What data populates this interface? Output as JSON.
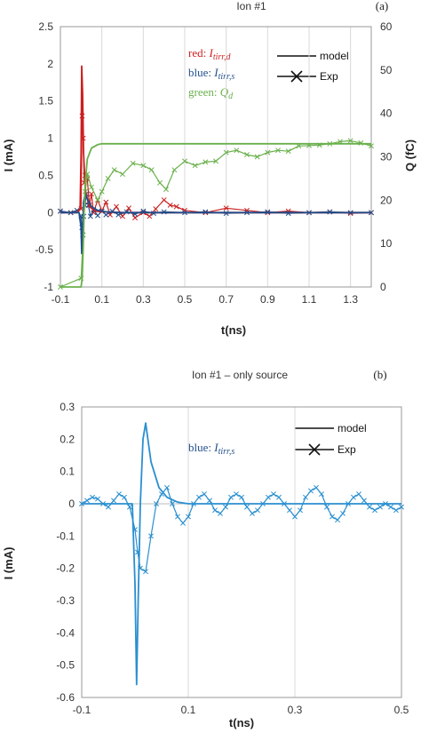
{
  "colors": {
    "red": "#cc1f1f",
    "blue": "#1f4e8c",
    "green": "#6ab04c",
    "panel_b_line": "#2a8fd0",
    "grid": "#d9d9d9"
  },
  "chart_data": [
    {
      "type": "line",
      "panel_label": "(a)",
      "title": "Ion #1",
      "xlabel": "t(ns)",
      "ylabel": "I (mA)",
      "y2label": "Q (fC)",
      "xlim": [
        -0.1,
        1.4
      ],
      "ylim": [
        -1,
        2.5
      ],
      "y2lim": [
        0,
        60
      ],
      "xticks": [
        "-0.1",
        "0.1",
        "0.3",
        "0.5",
        "0.7",
        "0.9",
        "1.1",
        "1.3"
      ],
      "yticks": [
        "2.5",
        "2",
        "1.5",
        "1",
        "0.5",
        "0",
        "-0.5",
        "-1"
      ],
      "y2ticks": [
        "60",
        "50",
        "40",
        "30",
        "20",
        "10",
        "0"
      ],
      "grid": "vertical",
      "legend": {
        "placement": "top-right",
        "entries": [
          "model",
          "Exp"
        ]
      },
      "annotations": [
        {
          "prefix": "red: ",
          "symbol": "I",
          "sub": "tirr,d",
          "color": "red"
        },
        {
          "prefix": "blue: ",
          "symbol": "I",
          "sub": "tirr,s",
          "color": "blue"
        },
        {
          "prefix": "green: ",
          "symbol": "Q",
          "sub": "d",
          "color": "green"
        }
      ],
      "series": [
        {
          "name": "red: Itirr,d",
          "axis": "y",
          "style": "model",
          "x": [
            -0.1,
            -0.02,
            -0.005,
            0.0,
            0.003,
            0.007,
            0.012,
            0.02,
            0.04,
            0.07,
            0.1,
            0.2,
            0.3,
            0.5,
            0.8,
            1.1,
            1.4
          ],
          "y": [
            0,
            0,
            0.05,
            0.8,
            1.97,
            1.6,
            0.8,
            0.3,
            0.08,
            0.02,
            0.01,
            0,
            0,
            0,
            0,
            0,
            0
          ]
        },
        {
          "name": "blue: Itirr,s",
          "axis": "y",
          "style": "model",
          "x": [
            -0.1,
            -0.01,
            0.0,
            0.003,
            0.007,
            0.012,
            0.02,
            0.03,
            0.05,
            0.08,
            0.12,
            0.2,
            0.4,
            0.8,
            1.4
          ],
          "y": [
            0,
            0,
            -0.2,
            -0.55,
            -0.3,
            0.15,
            0.25,
            0.18,
            0.08,
            0.03,
            0.01,
            0,
            0,
            0,
            0
          ]
        },
        {
          "name": "green: Qd",
          "axis": "y2",
          "style": "model",
          "x": [
            -0.1,
            0.0,
            0.005,
            0.01,
            0.015,
            0.02,
            0.03,
            0.05,
            0.08,
            0.1,
            0.2,
            0.5,
            1.0,
            1.4
          ],
          "y": [
            0,
            0,
            2,
            9,
            18,
            24,
            29.5,
            32,
            32.8,
            33,
            33,
            33,
            33,
            33
          ]
        },
        {
          "name": "red: Itirr,d",
          "axis": "y",
          "style": "exp",
          "x": [
            -0.1,
            -0.05,
            0.0,
            0.005,
            0.01,
            0.015,
            0.02,
            0.03,
            0.04,
            0.05,
            0.06,
            0.08,
            0.1,
            0.12,
            0.14,
            0.17,
            0.2,
            0.23,
            0.26,
            0.3,
            0.33,
            0.36,
            0.4,
            0.43,
            0.46,
            0.5,
            0.6,
            0.7,
            0.8,
            0.9,
            1.0,
            1.1,
            1.2,
            1.3,
            1.4
          ],
          "y": [
            0.02,
            0.0,
            0.05,
            1.3,
            1.0,
            0.4,
            0.5,
            0.45,
            0.1,
            0.25,
            0.0,
            0.17,
            0.02,
            0.14,
            -0.03,
            0.08,
            -0.05,
            0.06,
            -0.07,
            0.0,
            -0.05,
            0.05,
            0.17,
            0.1,
            0.08,
            0.03,
            0.0,
            0.06,
            0.03,
            0.0,
            0.02,
            0.0,
            0.01,
            -0.01,
            0.0
          ]
        },
        {
          "name": "blue: Itirr,s",
          "axis": "y",
          "style": "exp",
          "x": [
            -0.1,
            -0.05,
            -0.02,
            0.0,
            0.004,
            0.008,
            0.012,
            0.018,
            0.025,
            0.035,
            0.045,
            0.06,
            0.08,
            0.1,
            0.12,
            0.15,
            0.18,
            0.22,
            0.26,
            0.3,
            0.35,
            0.4,
            0.5,
            0.6,
            0.7,
            0.8,
            0.9,
            1.0,
            1.1,
            1.2,
            1.3,
            1.4
          ],
          "y": [
            0.02,
            0.0,
            0.03,
            -0.05,
            -0.2,
            -0.3,
            -0.05,
            0.1,
            0.25,
            0.1,
            -0.05,
            0.04,
            -0.04,
            0.02,
            -0.03,
            0.02,
            -0.03,
            0.01,
            -0.02,
            0.02,
            -0.01,
            0.01,
            0.0,
            0.01,
            -0.01,
            0.0,
            0.01,
            -0.01,
            0.0,
            0.01,
            0.0,
            0.0
          ]
        },
        {
          "name": "green: Qd",
          "axis": "y2",
          "style": "exp",
          "x": [
            -0.1,
            0.0,
            0.01,
            0.02,
            0.03,
            0.05,
            0.08,
            0.1,
            0.13,
            0.16,
            0.2,
            0.25,
            0.3,
            0.34,
            0.38,
            0.41,
            0.45,
            0.5,
            0.55,
            0.6,
            0.65,
            0.7,
            0.75,
            0.8,
            0.85,
            0.9,
            0.95,
            1.0,
            1.05,
            1.1,
            1.15,
            1.2,
            1.25,
            1.3,
            1.35,
            1.4
          ],
          "y": [
            0,
            2,
            12,
            22,
            26,
            23,
            20,
            22,
            25,
            27,
            26,
            28.5,
            28,
            27,
            24,
            22.5,
            27,
            29,
            28,
            28.8,
            29,
            31,
            31.5,
            30.5,
            30,
            31,
            31.5,
            31.3,
            32.5,
            32.6,
            32.7,
            33,
            33.5,
            33.7,
            33.2,
            32.5
          ]
        }
      ]
    },
    {
      "type": "line",
      "panel_label": "(b)",
      "title": "Ion #1 – only source",
      "xlabel": "t(ns)",
      "ylabel": "I (mA)",
      "xlim": [
        -0.1,
        0.5
      ],
      "ylim": [
        -0.6,
        0.3
      ],
      "xticks": [
        "-0.1",
        "0.1",
        "0.3",
        "0.5"
      ],
      "yticks": [
        "0.3",
        "0.2",
        "0.1",
        "0",
        "-0.1",
        "-0.2",
        "-0.3",
        "-0.4",
        "-0.5",
        "-0.6"
      ],
      "grid": "vertical",
      "legend": {
        "placement": "top-right",
        "entries": [
          "model",
          "Exp"
        ]
      },
      "annotations": [
        {
          "prefix": "blue: ",
          "symbol": "I",
          "sub": "tirr,s",
          "color": "blue"
        }
      ],
      "series": [
        {
          "name": "blue: Itirr,s",
          "style": "model",
          "x": [
            -0.1,
            -0.005,
            0.0,
            0.003,
            0.006,
            0.01,
            0.015,
            0.02,
            0.03,
            0.045,
            0.06,
            0.08,
            0.1,
            0.5
          ],
          "y": [
            0,
            0,
            -0.25,
            -0.56,
            -0.3,
            0.0,
            0.2,
            0.25,
            0.13,
            0.05,
            0.02,
            0.005,
            0.0,
            0.0
          ]
        },
        {
          "name": "blue: Itirr,s",
          "style": "exp",
          "x": [
            -0.1,
            -0.09,
            -0.08,
            -0.07,
            -0.06,
            -0.05,
            -0.04,
            -0.03,
            -0.02,
            -0.01,
            0.0,
            0.005,
            0.01,
            0.02,
            0.03,
            0.04,
            0.05,
            0.06,
            0.07,
            0.08,
            0.09,
            0.1,
            0.11,
            0.12,
            0.13,
            0.14,
            0.15,
            0.16,
            0.17,
            0.18,
            0.19,
            0.2,
            0.21,
            0.22,
            0.23,
            0.24,
            0.25,
            0.26,
            0.27,
            0.28,
            0.29,
            0.3,
            0.31,
            0.32,
            0.33,
            0.34,
            0.35,
            0.36,
            0.37,
            0.38,
            0.39,
            0.4,
            0.41,
            0.42,
            0.43,
            0.44,
            0.45,
            0.46,
            0.47,
            0.48,
            0.49,
            0.5
          ],
          "y": [
            0.0,
            0.01,
            0.02,
            0.015,
            0.0,
            -0.01,
            0.01,
            0.03,
            0.02,
            -0.01,
            -0.08,
            -0.15,
            -0.2,
            -0.21,
            -0.1,
            0.0,
            0.03,
            0.05,
            0.0,
            -0.04,
            -0.06,
            -0.04,
            0.0,
            0.02,
            0.03,
            0.01,
            -0.02,
            -0.03,
            -0.01,
            0.02,
            0.03,
            0.02,
            -0.01,
            -0.03,
            -0.02,
            0.0,
            0.02,
            0.03,
            0.02,
            0.0,
            -0.02,
            -0.04,
            -0.02,
            0.02,
            0.04,
            0.05,
            0.03,
            -0.01,
            -0.04,
            -0.05,
            -0.03,
            0.0,
            0.02,
            0.03,
            0.01,
            -0.01,
            -0.02,
            -0.01,
            0.0,
            -0.01,
            -0.02,
            -0.01
          ]
        }
      ]
    }
  ]
}
